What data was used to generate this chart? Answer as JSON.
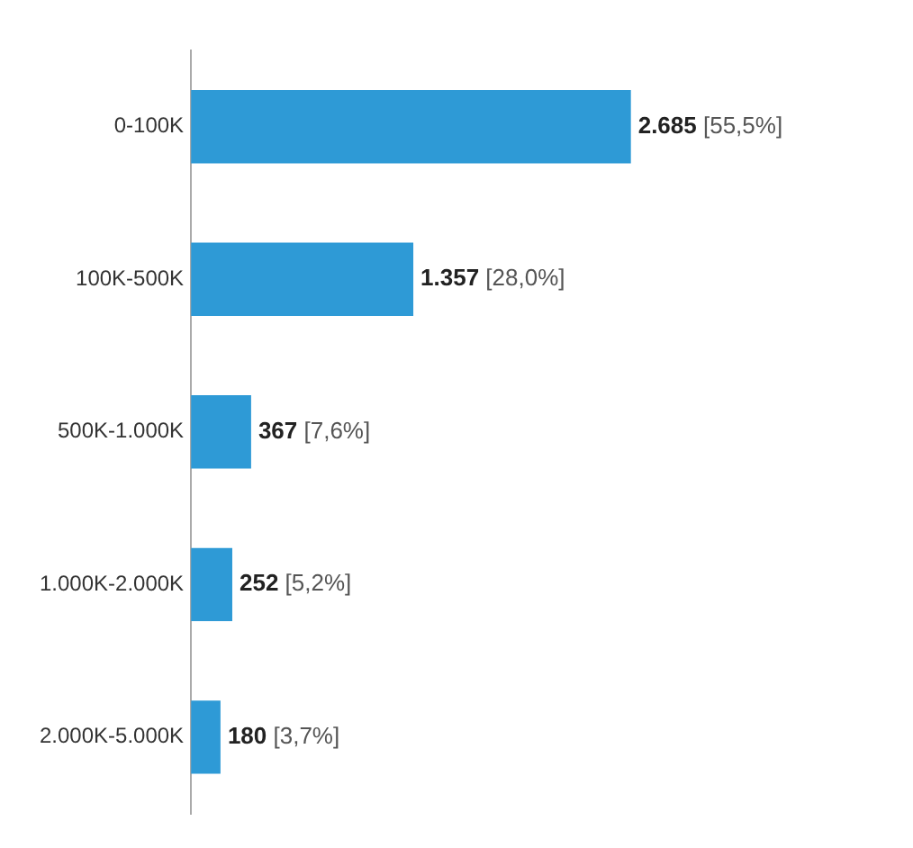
{
  "chart_data": {
    "type": "bar",
    "orientation": "horizontal",
    "categories": [
      "0-100K",
      "100K-500K",
      "500K-1.000K",
      "1.000K-2.000K",
      "2.000K-5.000K"
    ],
    "values": [
      2685,
      1357,
      367,
      252,
      180
    ],
    "color": "#2e9ad6",
    "value_labels": [
      "2.685 [55,5%]",
      "1.357 [28,0%]",
      "367 [7,6%]",
      "252 [5,2%]",
      "180 [3,7%]"
    ],
    "grid": false,
    "legend": false
  }
}
